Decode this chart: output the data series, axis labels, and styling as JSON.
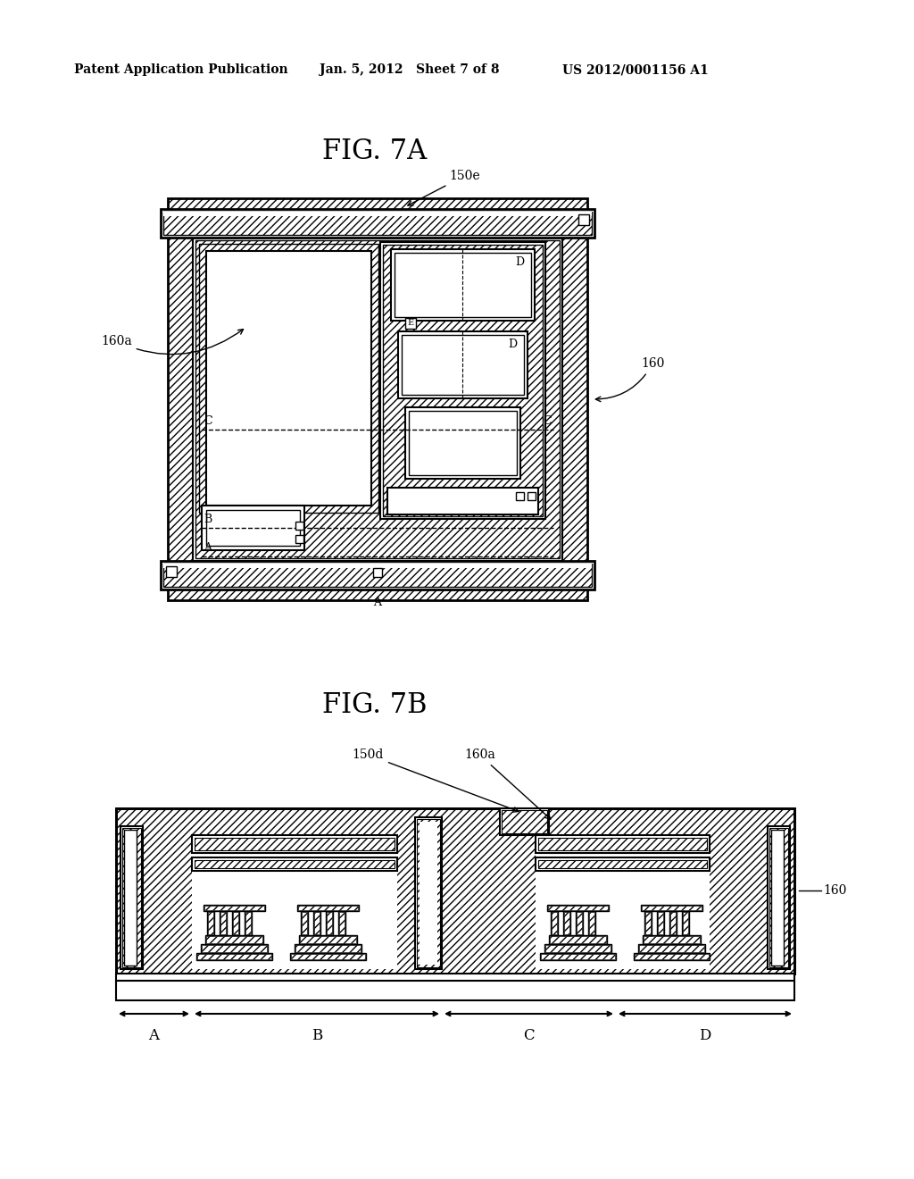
{
  "bg_color": "#ffffff",
  "header_left": "Patent Application Publication",
  "header_mid": "Jan. 5, 2012   Sheet 7 of 8",
  "header_right": "US 2012/0001156 A1",
  "fig7a_title": "FIG. 7A",
  "fig7b_title": "FIG. 7B"
}
